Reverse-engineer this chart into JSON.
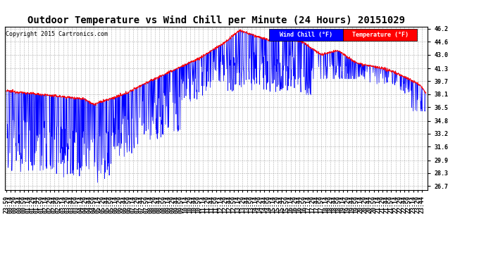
{
  "title": "Outdoor Temperature vs Wind Chill per Minute (24 Hours) 20151029",
  "copyright_text": "Copyright 2015 Cartronics.com",
  "ylabel_right_ticks": [
    26.7,
    28.3,
    29.9,
    31.6,
    33.2,
    34.8,
    36.5,
    38.1,
    39.7,
    41.3,
    43.0,
    44.6,
    46.2
  ],
  "ylim_min": 26.2,
  "ylim_max": 46.5,
  "temp_color": "#ff0000",
  "wind_color": "#0000ff",
  "bg_color": "#ffffff",
  "grid_color": "#999999",
  "title_fontsize": 10,
  "copyright_fontsize": 6,
  "tick_fontsize": 6,
  "legend_wind_bg": "#0000ff",
  "legend_temp_bg": "#ff0000",
  "legend_text_color": "#ffffff",
  "legend_fontsize": 6
}
